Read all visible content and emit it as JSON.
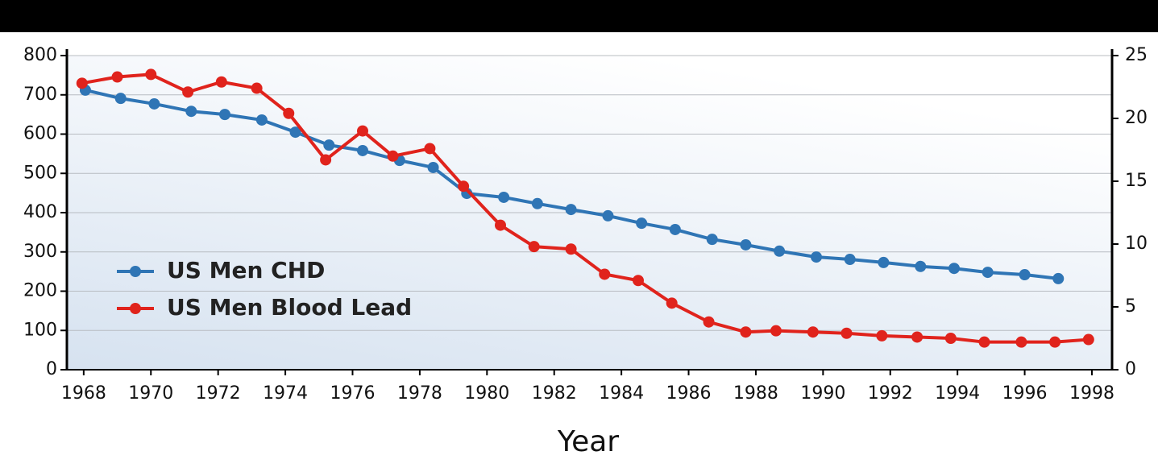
{
  "chart_data": {
    "type": "line",
    "xlabel": "Year",
    "xlim": [
      1967.5,
      1998.6
    ],
    "xticks": [
      1968,
      1970,
      1972,
      1974,
      1976,
      1978,
      1980,
      1982,
      1984,
      1986,
      1988,
      1990,
      1992,
      1994,
      1996,
      1998
    ],
    "ylim": [
      0,
      800
    ],
    "yticks": [
      0,
      100,
      200,
      300,
      400,
      500,
      600,
      700,
      800
    ],
    "y2lim": [
      0,
      25
    ],
    "y2ticks": [
      0,
      5,
      10,
      15,
      20,
      25
    ],
    "grid": true,
    "legend": "center left",
    "series": [
      {
        "name": "US Men CHD",
        "color": "#2f75b5",
        "x": [
          1968.05,
          1969.1,
          1970.1,
          1971.2,
          1972.2,
          1973.3,
          1974.3,
          1975.3,
          1976.3,
          1977.4,
          1978.4,
          1979.4,
          1980.5,
          1981.5,
          1982.5,
          1983.6,
          1984.6,
          1985.6,
          1986.7,
          1987.7,
          1988.7,
          1989.8,
          1990.8,
          1991.8,
          1992.9,
          1993.9,
          1994.9,
          1996.0,
          1997.0
        ],
        "values": [
          712,
          691,
          677,
          658,
          650,
          636,
          605,
          572,
          558,
          533,
          515,
          449,
          439,
          423,
          408,
          392,
          373,
          357,
          332,
          318,
          302,
          287,
          281,
          273,
          263,
          258,
          248,
          242,
          232
        ]
      },
      {
        "name": "US Men Blood Lead",
        "color": "#e0231c",
        "axis": "y2",
        "x": [
          1967.95,
          1969.0,
          1970.0,
          1971.1,
          1972.1,
          1973.15,
          1974.1,
          1975.2,
          1976.3,
          1977.2,
          1978.3,
          1979.3,
          1980.4,
          1981.4,
          1982.5,
          1983.5,
          1984.5,
          1985.5,
          1986.6,
          1987.7,
          1988.6,
          1989.7,
          1990.7,
          1991.75,
          1992.8,
          1993.8,
          1994.8,
          1995.9,
          1996.9,
          1997.9
        ],
        "values": [
          22.8,
          23.3,
          23.5,
          22.1,
          22.9,
          22.4,
          20.4,
          16.7,
          19.0,
          17.0,
          17.6,
          14.6,
          11.5,
          9.8,
          9.6,
          7.6,
          7.1,
          5.3,
          3.8,
          3.0,
          3.1,
          3.0,
          2.9,
          2.7,
          2.6,
          2.5,
          2.2,
          2.2,
          2.2,
          2.4
        ]
      }
    ]
  }
}
